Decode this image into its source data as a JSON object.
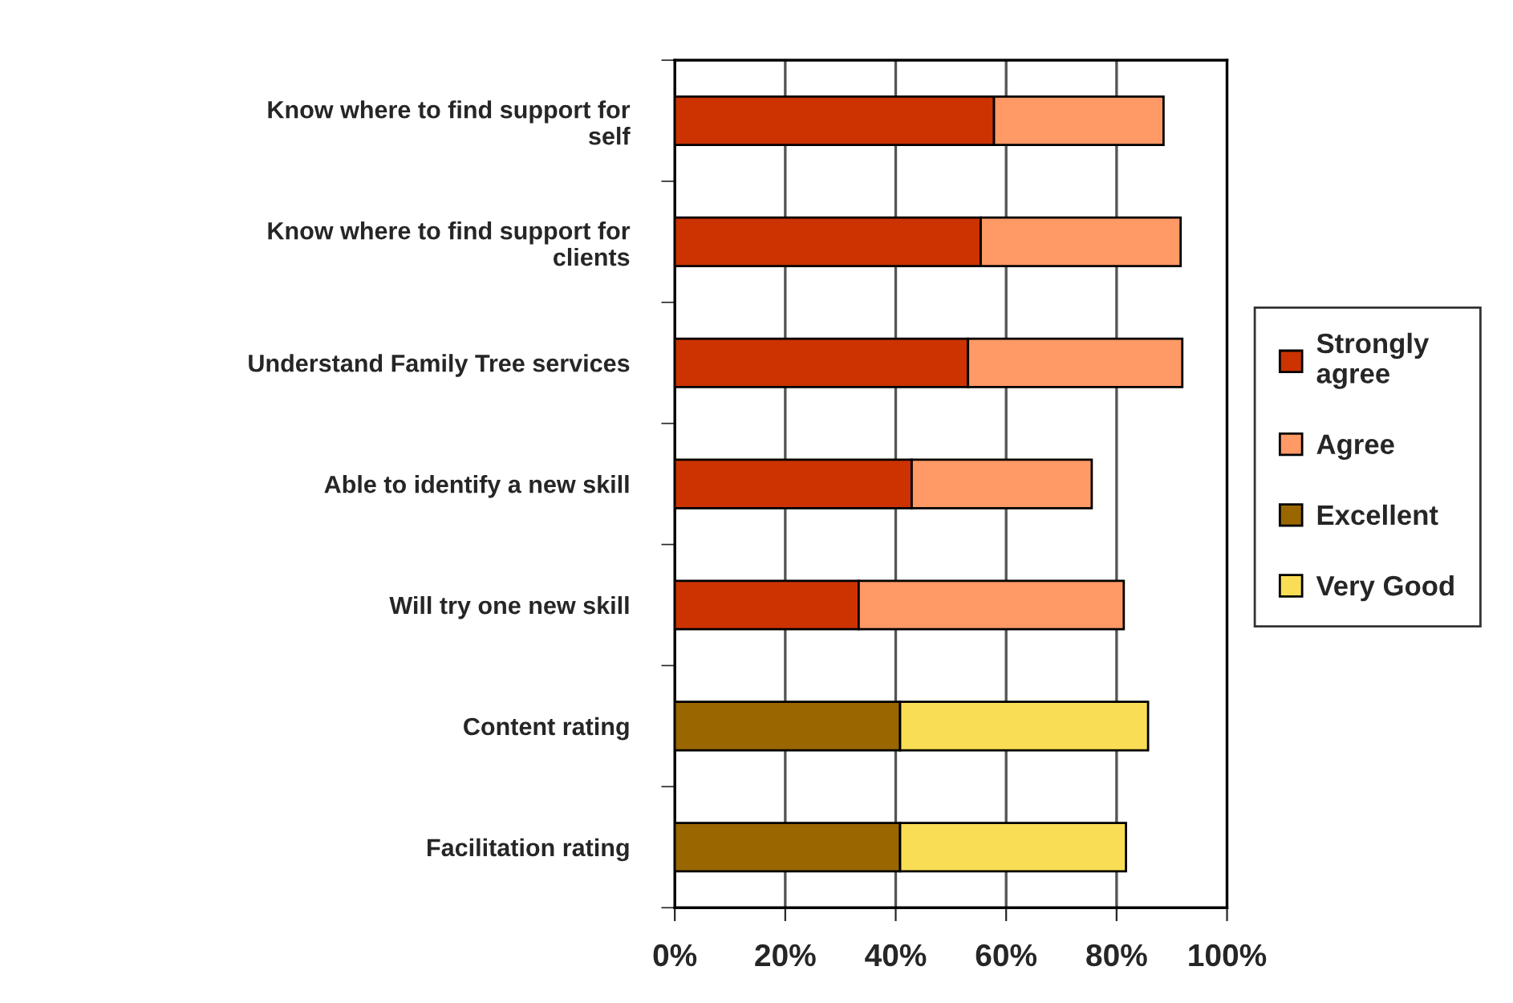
{
  "chart_data": {
    "type": "bar",
    "orientation": "horizontal",
    "stacked": true,
    "categories": [
      "Know where to find support for\nself",
      "Know where to find support for\nclients",
      "Understand Family Tree services",
      "Able to identify a new skill",
      "Will try one new skill",
      "Content rating",
      "Facilitation rating"
    ],
    "series": [
      {
        "name": "Strongly\nagree",
        "color": "#cc3300",
        "values": [
          57.8,
          55.4,
          53.1,
          42.9,
          33.3,
          null,
          null
        ]
      },
      {
        "name": "Agree",
        "color": "#ff9966",
        "values": [
          30.7,
          36.2,
          38.8,
          32.6,
          48.0,
          null,
          null
        ]
      },
      {
        "name": "Excellent",
        "color": "#996600",
        "values": [
          null,
          null,
          null,
          null,
          null,
          40.8,
          40.8
        ]
      },
      {
        "name": "Very Good",
        "color": "#f9de55",
        "values": [
          null,
          null,
          null,
          null,
          null,
          44.9,
          40.9
        ]
      }
    ],
    "xlim": [
      0,
      100
    ],
    "xticks": [
      {
        "value": 0,
        "label": "0%"
      },
      {
        "value": 20,
        "label": "20%"
      },
      {
        "value": 40,
        "label": "40%"
      },
      {
        "value": 60,
        "label": "60%"
      },
      {
        "value": 80,
        "label": "80%"
      },
      {
        "value": 100,
        "label": "100%"
      }
    ],
    "grid": "x",
    "legend": "right"
  }
}
